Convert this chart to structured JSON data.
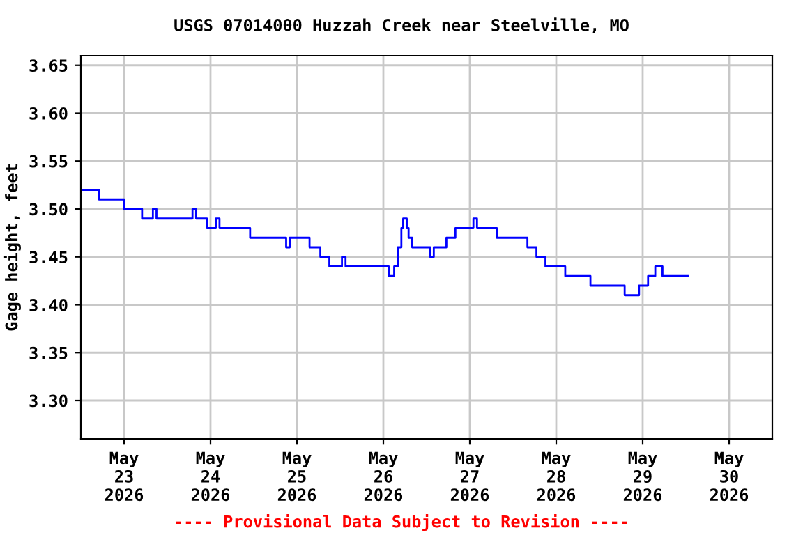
{
  "chart_data": {
    "type": "step",
    "title": "USGS 07014000 Huzzah Creek near Steelville, MO",
    "ylabel": "Gage height, feet",
    "annotations": [
      "---- Provisional Data Subject to Revision ----"
    ],
    "x": [
      "2026-05-22T12:00",
      "2026-05-22T17:00",
      "2026-05-23T00:00",
      "2026-05-23T05:00",
      "2026-05-23T08:00",
      "2026-05-23T09:00",
      "2026-05-23T19:00",
      "2026-05-23T20:00",
      "2026-05-23T23:00",
      "2026-05-24T01:30",
      "2026-05-24T02:30",
      "2026-05-24T11:00",
      "2026-05-24T21:00",
      "2026-05-24T22:00",
      "2026-05-25T03:30",
      "2026-05-25T06:30",
      "2026-05-25T09:00",
      "2026-05-25T12:30",
      "2026-05-25T13:30",
      "2026-05-26T01:30",
      "2026-05-26T03:00",
      "2026-05-26T04:00",
      "2026-05-26T05:00",
      "2026-05-26T05:30",
      "2026-05-26T06:30",
      "2026-05-26T07:00",
      "2026-05-26T08:00",
      "2026-05-26T13:00",
      "2026-05-26T14:00",
      "2026-05-26T17:30",
      "2026-05-26T20:00",
      "2026-05-27T01:00",
      "2026-05-27T02:00",
      "2026-05-27T07:30",
      "2026-05-27T16:00",
      "2026-05-27T18:30",
      "2026-05-27T21:00",
      "2026-05-28T02:30",
      "2026-05-28T09:30",
      "2026-05-28T19:00",
      "2026-05-28T23:00",
      "2026-05-29T01:30",
      "2026-05-29T03:30",
      "2026-05-29T05:30",
      "2026-05-29T12:30"
    ],
    "series": [
      {
        "color": "#0000ff",
        "values": [
          3.52,
          3.51,
          3.5,
          3.49,
          3.5,
          3.49,
          3.5,
          3.49,
          3.48,
          3.49,
          3.48,
          3.47,
          3.46,
          3.47,
          3.46,
          3.45,
          3.44,
          3.45,
          3.44,
          3.43,
          3.44,
          3.46,
          3.48,
          3.49,
          3.48,
          3.47,
          3.46,
          3.45,
          3.46,
          3.47,
          3.48,
          3.49,
          3.48,
          3.47,
          3.46,
          3.45,
          3.44,
          3.43,
          3.42,
          3.41,
          3.42,
          3.43,
          3.44,
          3.43,
          3.43
        ]
      }
    ],
    "xlim": [
      "2026-05-22T12:00",
      "2026-05-30T12:00"
    ],
    "xticks": [
      {
        "value": "2026-05-23",
        "label": "May\n23\n2026"
      },
      {
        "value": "2026-05-24",
        "label": "May\n24\n2026"
      },
      {
        "value": "2026-05-25",
        "label": "May\n25\n2026"
      },
      {
        "value": "2026-05-26",
        "label": "May\n26\n2026"
      },
      {
        "value": "2026-05-27",
        "label": "May\n27\n2026"
      },
      {
        "value": "2026-05-28",
        "label": "May\n28\n2026"
      },
      {
        "value": "2026-05-29",
        "label": "May\n29\n2026"
      },
      {
        "value": "2026-05-30",
        "label": "May\n30\n2026"
      }
    ],
    "ylim": [
      3.26,
      3.66
    ],
    "yticks": [
      {
        "value": 3.3,
        "label": "3.30"
      },
      {
        "value": 3.35,
        "label": "3.35"
      },
      {
        "value": 3.4,
        "label": "3.40"
      },
      {
        "value": 3.45,
        "label": "3.45"
      },
      {
        "value": 3.5,
        "label": "3.50"
      },
      {
        "value": 3.55,
        "label": "3.55"
      },
      {
        "value": 3.6,
        "label": "3.60"
      },
      {
        "value": 3.65,
        "label": "3.65"
      }
    ],
    "grid": true,
    "legend": false
  }
}
